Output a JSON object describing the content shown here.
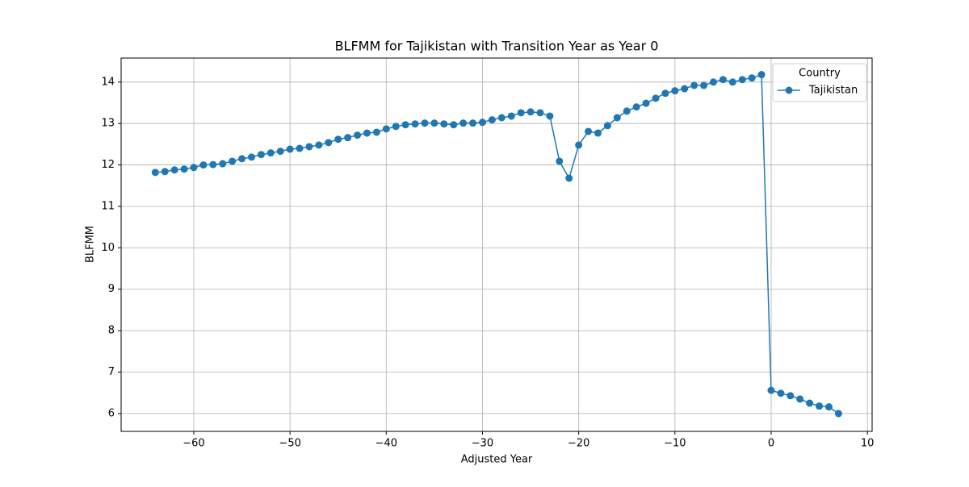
{
  "chart_data": {
    "type": "line",
    "title": "BLFMM for Tajikistan with Transition Year as Year 0",
    "x_label": "Adjusted Year",
    "y_label": "BLFMM",
    "x": [
      -64,
      -63,
      -62,
      -61,
      -60,
      -59,
      -58,
      -57,
      -56,
      -55,
      -54,
      -53,
      -52,
      -51,
      -50,
      -49,
      -48,
      -47,
      -46,
      -45,
      -44,
      -43,
      -42,
      -41,
      -40,
      -39,
      -38,
      -37,
      -36,
      -35,
      -34,
      -33,
      -32,
      -31,
      -30,
      -29,
      -28,
      -27,
      -26,
      -25,
      -24,
      -23,
      -22,
      -21,
      -20,
      -19,
      -18,
      -17,
      -16,
      -15,
      -14,
      -13,
      -12,
      -11,
      -10,
      -9,
      -8,
      -7,
      -6,
      -5,
      -4,
      -3,
      -2,
      -1,
      0,
      1,
      2,
      3,
      4,
      5,
      6,
      7
    ],
    "series": [
      {
        "name": "Tajikistan",
        "color": "#1f77b4",
        "values": [
          11.82,
          11.84,
          11.88,
          11.9,
          11.94,
          12.0,
          12.01,
          12.03,
          12.09,
          12.15,
          12.19,
          12.25,
          12.29,
          12.33,
          12.38,
          12.4,
          12.44,
          12.48,
          12.54,
          12.62,
          12.66,
          12.72,
          12.77,
          12.79,
          12.87,
          12.93,
          12.97,
          12.99,
          13.01,
          13.01,
          12.99,
          12.97,
          13.01,
          13.01,
          13.03,
          13.09,
          13.14,
          13.18,
          13.26,
          13.28,
          13.26,
          13.18,
          12.09,
          11.68,
          12.48,
          12.81,
          12.77,
          12.95,
          13.14,
          13.3,
          13.4,
          13.49,
          13.61,
          13.73,
          13.79,
          13.84,
          13.92,
          13.92,
          14.0,
          14.06,
          14.0,
          14.06,
          14.1,
          14.18,
          6.56,
          6.49,
          6.43,
          6.35,
          6.25,
          6.18,
          6.16,
          6.0
        ]
      }
    ],
    "legend_title": "Country",
    "legend": "upper right",
    "xlim": [
      -67.55,
      10.49
    ],
    "ylim": [
      5.57,
      14.58
    ],
    "xticks": [
      {
        "value": -60,
        "label": "−60"
      },
      {
        "value": -50,
        "label": "−50"
      },
      {
        "value": -40,
        "label": "−40"
      },
      {
        "value": -30,
        "label": "−30"
      },
      {
        "value": -20,
        "label": "−20"
      },
      {
        "value": -10,
        "label": "−10"
      },
      0,
      10
    ],
    "yticks": [
      6,
      7,
      8,
      9,
      10,
      11,
      12,
      13,
      14
    ],
    "grid": true
  }
}
